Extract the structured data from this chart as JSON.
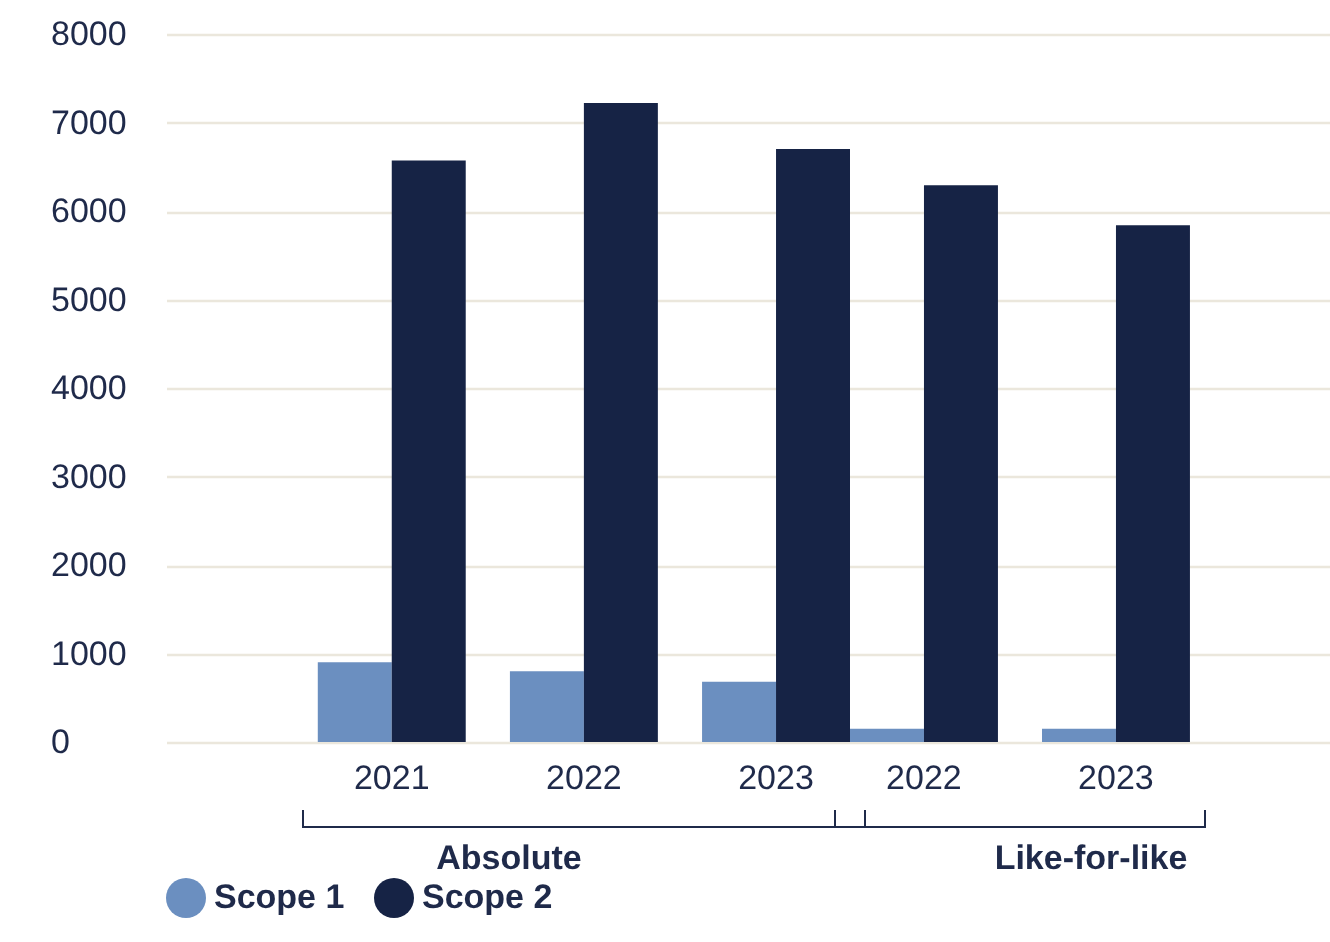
{
  "chart_data": [
    {
      "type": "bar",
      "categories": [
        "2021",
        "2022",
        "2023"
      ],
      "xlabel": "Absolute",
      "series": [
        {
          "name": "Scope 1",
          "color": "#6b8fc0",
          "values": [
            900,
            800,
            680
          ]
        },
        {
          "name": "Scope 2",
          "color": "#162345",
          "values": [
            6570,
            7220,
            6700
          ]
        }
      ],
      "ylim": [
        0,
        8000
      ],
      "yticks": [
        0,
        1000,
        2000,
        3000,
        4000,
        5000,
        6000,
        7000,
        8000
      ],
      "grid": "y",
      "legend": "bottom"
    },
    {
      "type": "bar",
      "categories": [
        "2022",
        "2023"
      ],
      "xlabel": "Like-for-like",
      "series": [
        {
          "color": "#6b8fc0",
          "values": [
            150,
            150
          ]
        },
        {
          "color": "#162345",
          "values": [
            6290,
            5840
          ]
        }
      ],
      "ylim": [
        0,
        8000
      ],
      "yticks": [
        0,
        1000,
        2000,
        3000,
        4000,
        5000,
        6000,
        7000,
        8000
      ],
      "grid": "y",
      "tick_labels": "x"
    }
  ]
}
